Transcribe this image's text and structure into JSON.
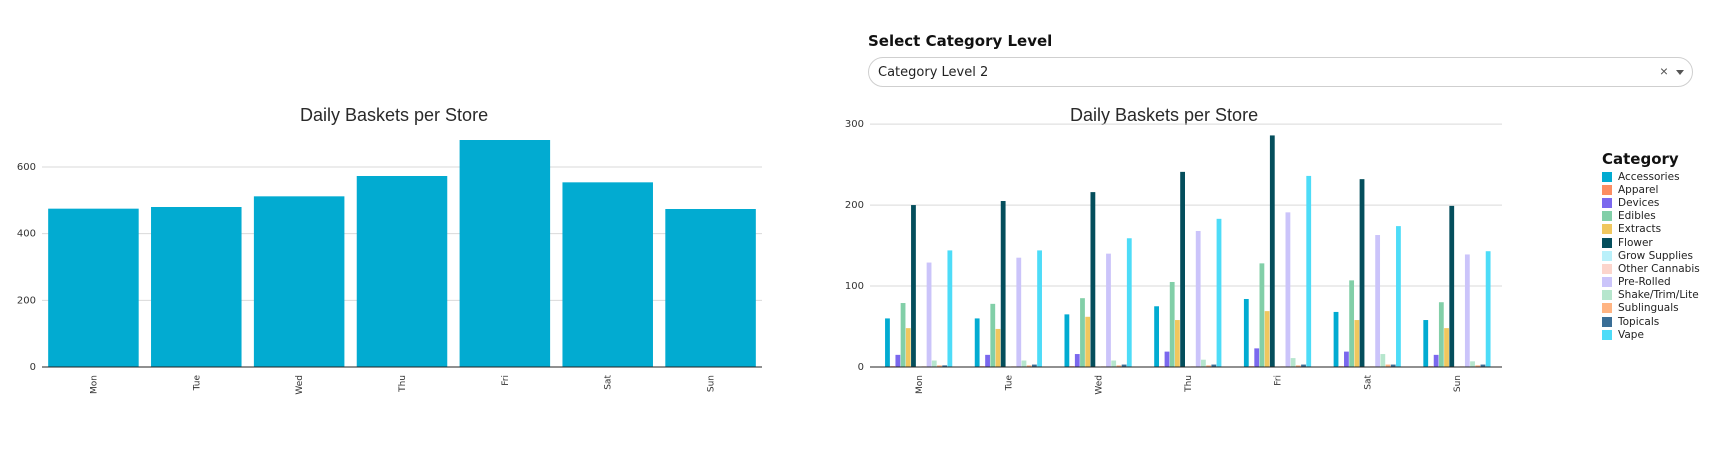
{
  "select": {
    "label": "Select Category Level",
    "value": "Category Level 2",
    "clear_icon": "×"
  },
  "chart_data": [
    {
      "type": "bar",
      "title": "Daily Baskets per Store",
      "xlabel": "",
      "ylabel": "",
      "categories": [
        "Mon",
        "Tue",
        "Wed",
        "Thu",
        "Fri",
        "Sat",
        "Sun"
      ],
      "values": [
        475,
        480,
        512,
        573,
        681,
        554,
        474
      ],
      "ylim": [
        0,
        720
      ],
      "yticks": [
        0,
        200,
        400,
        600
      ],
      "color": "#02abd1",
      "grid": true
    },
    {
      "type": "bar",
      "title": "Daily Baskets per Store",
      "xlabel": "",
      "ylabel": "",
      "categories": [
        "Mon",
        "Tue",
        "Wed",
        "Thu",
        "Fri",
        "Sat",
        "Sun"
      ],
      "ylim": [
        0,
        310
      ],
      "yticks": [
        0,
        100,
        200,
        300
      ],
      "grid": true,
      "legend_title": "Category",
      "legend_position": "right",
      "series": [
        {
          "name": "Accessories",
          "color": "#02abd1",
          "values": [
            60,
            60,
            65,
            75,
            84,
            68,
            58
          ]
        },
        {
          "name": "Apparel",
          "color": "#fc8d62",
          "values": [
            1,
            1,
            1,
            1,
            1,
            1,
            1
          ]
        },
        {
          "name": "Devices",
          "color": "#7b68ee",
          "values": [
            15,
            15,
            16,
            19,
            23,
            19,
            15
          ]
        },
        {
          "name": "Edibles",
          "color": "#82cfa8",
          "values": [
            79,
            78,
            85,
            105,
            128,
            107,
            80
          ]
        },
        {
          "name": "Extracts",
          "color": "#f0c75e",
          "values": [
            48,
            47,
            62,
            58,
            69,
            58,
            48
          ]
        },
        {
          "name": "Flower",
          "color": "#044e5c",
          "values": [
            200,
            205,
            216,
            241,
            286,
            232,
            199
          ]
        },
        {
          "name": "Grow Supplies",
          "color": "#b9f0fa",
          "values": [
            0,
            0,
            0,
            0,
            0,
            0,
            0
          ]
        },
        {
          "name": "Other Cannabis",
          "color": "#fcd5cc",
          "values": [
            1,
            1,
            1,
            1,
            1,
            1,
            1
          ]
        },
        {
          "name": "Pre-Rolled",
          "color": "#cbc4fa",
          "values": [
            129,
            135,
            140,
            168,
            191,
            163,
            139
          ]
        },
        {
          "name": "Shake/Trim/Lite",
          "color": "#b6e6cd",
          "values": [
            8,
            8,
            8,
            9,
            11,
            16,
            7
          ]
        },
        {
          "name": "Sublinguals",
          "color": "#ffb482",
          "values": [
            2,
            2,
            2,
            2,
            2,
            3,
            2
          ]
        },
        {
          "name": "Topicals",
          "color": "#3a6e96",
          "values": [
            2,
            3,
            3,
            3,
            3,
            3,
            3
          ]
        },
        {
          "name": "Vape",
          "color": "#4ddcf8",
          "values": [
            144,
            144,
            159,
            183,
            236,
            174,
            143
          ]
        }
      ]
    }
  ]
}
